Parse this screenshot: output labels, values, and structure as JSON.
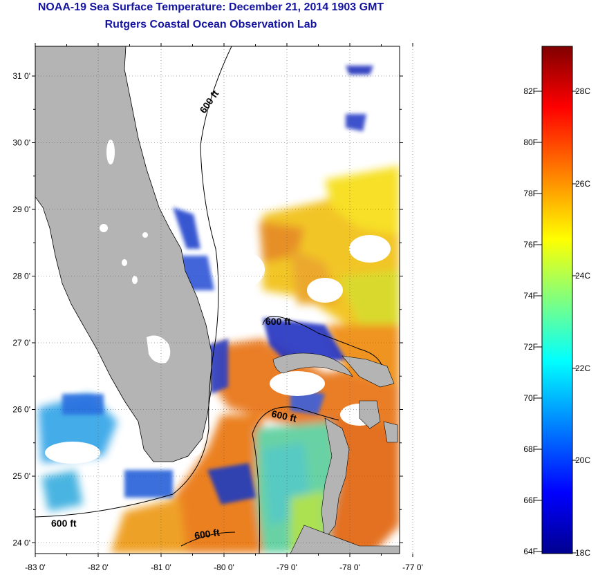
{
  "title": "NOAA-19 Sea Surface Temperature:  December 21, 2014 1903 GMT",
  "subtitle": "Rutgers Coastal Ocean Observation Lab",
  "lat_ticks": [
    "31 0'",
    "30 0'",
    "29 0'",
    "28 0'",
    "27 0'",
    "26 0'",
    "25 0'",
    "24 0'"
  ],
  "lon_ticks": [
    "-83 0'",
    "-82 0'",
    "-81 0'",
    "-80 0'",
    "-79 0'",
    "-78 0'",
    "-77 0'"
  ],
  "isobath_label": "600 ft",
  "colorbar": {
    "fahrenheit_labels": [
      "82F",
      "80F",
      "78F",
      "76F",
      "74F",
      "72F",
      "70F",
      "68F",
      "66F",
      "64F"
    ],
    "celsius_labels": [
      "28C",
      "26C",
      "24C",
      "22C",
      "20C",
      "18C"
    ]
  },
  "colors": {
    "land": "#b4b4b4",
    "title": "#1414a0",
    "warm": "#e06a10",
    "cool": "#2244cc"
  }
}
